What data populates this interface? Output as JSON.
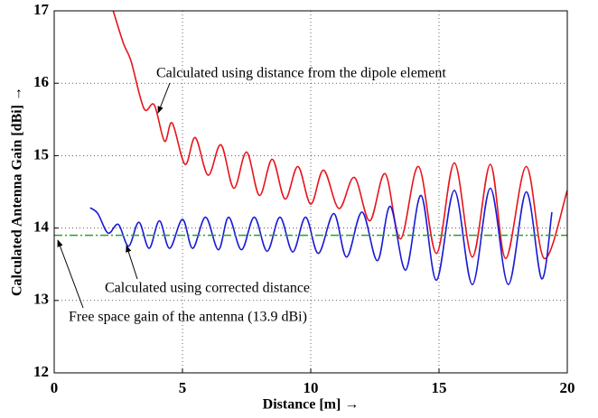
{
  "chart_data": {
    "type": "line",
    "xlabel": "Distance [m] →",
    "ylabel": "Calculated Antenna Gain [dBi] →",
    "xlim": [
      0,
      20
    ],
    "xticks": [
      0,
      5,
      10,
      15,
      20
    ],
    "ylim": [
      12,
      17
    ],
    "yticks": [
      12,
      13,
      14,
      15,
      16,
      17
    ],
    "grid": true,
    "series": [
      {
        "color": "#e8141b",
        "dash": "solid",
        "x": [
          2.3,
          2.7,
          3.0,
          3.5,
          3.9,
          4.3,
          4.6,
          5.1,
          5.5,
          6.0,
          6.5,
          7.0,
          7.5,
          8.0,
          8.5,
          9.0,
          9.5,
          10.0,
          10.5,
          11.1,
          11.7,
          12.3,
          12.9,
          13.5,
          14.2,
          14.9,
          15.6,
          16.3,
          17.0,
          17.6,
          18.4,
          19.1,
          20.0
        ],
        "values": [
          17.0,
          16.55,
          16.3,
          15.65,
          15.7,
          15.2,
          15.45,
          14.88,
          15.25,
          14.73,
          15.15,
          14.55,
          15.05,
          14.45,
          14.95,
          14.4,
          14.85,
          14.33,
          14.8,
          14.27,
          14.7,
          14.1,
          14.75,
          13.85,
          14.85,
          13.65,
          14.9,
          13.6,
          14.88,
          13.58,
          14.85,
          13.58,
          14.52
        ]
      },
      {
        "color": "#1a1ad6",
        "dash": "solid",
        "x": [
          1.4,
          1.7,
          2.1,
          2.5,
          2.9,
          3.3,
          3.7,
          4.1,
          4.5,
          5.0,
          5.4,
          5.9,
          6.4,
          6.8,
          7.3,
          7.8,
          8.3,
          8.8,
          9.3,
          9.8,
          10.3,
          10.9,
          11.4,
          12.0,
          12.6,
          13.1,
          13.7,
          14.3,
          14.9,
          15.6,
          16.3,
          17.0,
          17.7,
          18.4,
          19.0,
          19.4
        ],
        "values": [
          14.28,
          14.2,
          13.93,
          14.05,
          13.75,
          14.08,
          13.72,
          14.1,
          13.72,
          14.12,
          13.72,
          14.15,
          13.7,
          14.15,
          13.7,
          14.15,
          13.68,
          14.15,
          13.67,
          14.15,
          13.65,
          14.2,
          13.6,
          14.22,
          13.55,
          14.3,
          13.42,
          14.45,
          13.28,
          14.52,
          13.22,
          14.55,
          13.22,
          14.5,
          13.3,
          14.22
        ]
      },
      {
        "color": "#2e9e2e",
        "dash": "dashdot",
        "x": [
          0,
          20
        ],
        "values": [
          13.9,
          13.9
        ]
      }
    ],
    "annotations": [
      "Calculated using distance from the dipole element",
      "Calculated using corrected distance",
      "Free space gain of the antenna (13.9 dBi)"
    ]
  }
}
